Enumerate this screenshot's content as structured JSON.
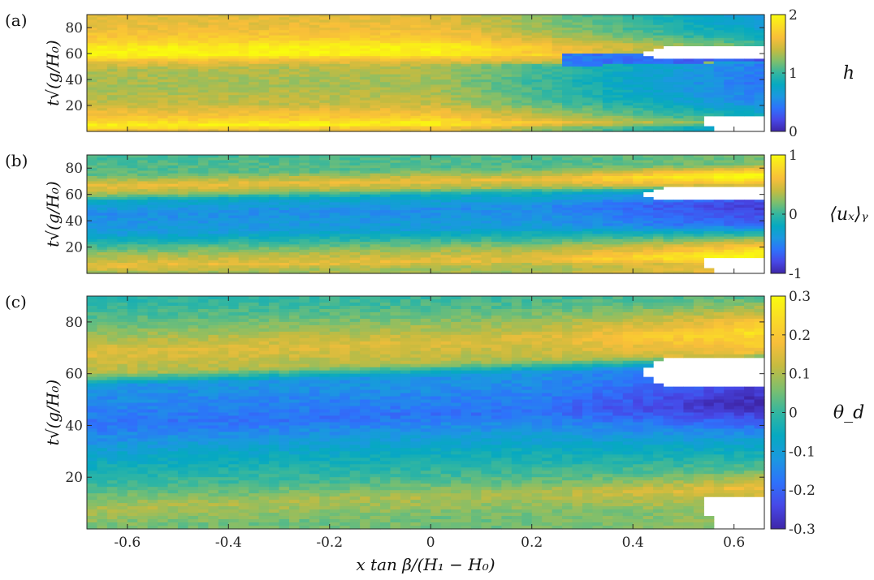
{
  "figure": {
    "xlabel": "x tan β/(H₁ − H₀)",
    "ylabel": "t√(g/H₀)"
  },
  "colormap": [
    "#3e26a8",
    "#4748e7",
    "#2e72fb",
    "#1b98e0",
    "#06a9c1",
    "#33b6a0",
    "#7ebf6d",
    "#c6bb40",
    "#f8be3a",
    "#fadb27",
    "#f9fb0e"
  ],
  "chart_data": [
    {
      "type": "heatmap",
      "panel": "(a)",
      "colorbar_label": "h",
      "colorbar_ticks": [
        "0",
        "1",
        "2"
      ],
      "clim": [
        0,
        2
      ],
      "xlim": [
        -0.68,
        0.66
      ],
      "ylim": [
        0,
        90
      ],
      "xticks": [
        "-0.6",
        "-0.4",
        "-0.2",
        "0",
        "0.2",
        "0.4",
        "0.6"
      ],
      "yticks": [
        "20",
        "40",
        "60",
        "80"
      ],
      "description_values": {
        "background_y": [
          [
            0,
            1.5
          ],
          [
            7,
            2.0
          ],
          [
            30,
            1.35
          ],
          [
            50,
            1.4
          ],
          [
            60,
            2.0
          ],
          [
            75,
            1.6
          ],
          [
            90,
            1.5
          ]
        ],
        "shore_x_at_t0": 0.55,
        "shore_x_at_t60": 0.42
      }
    },
    {
      "type": "heatmap",
      "panel": "(b)",
      "colorbar_label": "⟨uₓ⟩ᵧ",
      "colorbar_ticks": [
        "-1",
        "0",
        "1"
      ],
      "clim": [
        -1,
        1
      ],
      "xlim": [
        -0.68,
        0.66
      ],
      "ylim": [
        0,
        90
      ],
      "xticks": [
        "-0.6",
        "-0.4",
        "-0.2",
        "0",
        "0.2",
        "0.4",
        "0.6"
      ],
      "yticks": [
        "20",
        "40",
        "60",
        "80"
      ]
    },
    {
      "type": "heatmap",
      "panel": "(c)",
      "colorbar_label": "θ_d",
      "colorbar_ticks": [
        "-0.3",
        "-0.2",
        "-0.1",
        "0",
        "0.1",
        "0.2",
        "0.3"
      ],
      "clim": [
        -0.3,
        0.3
      ],
      "xlim": [
        -0.68,
        0.66
      ],
      "ylim": [
        0,
        90
      ],
      "xticks": [
        "-0.6",
        "-0.4",
        "-0.2",
        "0",
        "0.2",
        "0.4",
        "0.6"
      ],
      "yticks": [
        "20",
        "40",
        "60",
        "80"
      ]
    }
  ]
}
